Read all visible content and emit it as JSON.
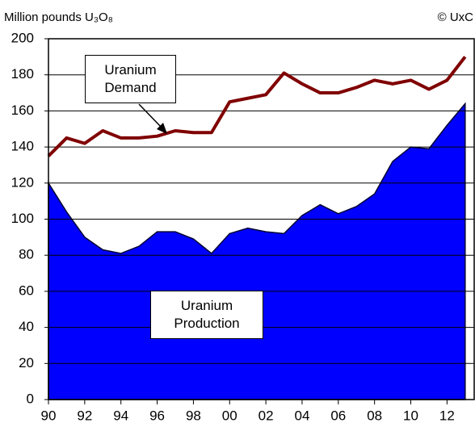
{
  "chart_data": {
    "type": "area_line",
    "title": "Million pounds U₃O₈",
    "source": "© UxC",
    "x": [
      1990,
      1991,
      1992,
      1993,
      1994,
      1995,
      1996,
      1997,
      1998,
      1999,
      2000,
      2001,
      2002,
      2003,
      2004,
      2005,
      2006,
      2007,
      2008,
      2009,
      2010,
      2011,
      2012,
      2013
    ],
    "series": [
      {
        "name": "Uranium Demand",
        "kind": "line",
        "color": "#800000",
        "values": [
          135,
          145,
          142,
          149,
          145,
          145,
          146,
          149,
          148,
          148,
          165,
          167,
          169,
          181,
          175,
          170,
          170,
          173,
          177,
          175,
          177,
          172,
          177,
          190
        ]
      },
      {
        "name": "Uranium Production",
        "kind": "area",
        "color": "#0000ff",
        "values": [
          120,
          104,
          90,
          83,
          81,
          85,
          93,
          93,
          89,
          81,
          92,
          95,
          93,
          92,
          102,
          108,
          103,
          107,
          114,
          132,
          140,
          139,
          152,
          164
        ]
      }
    ],
    "xlim": [
      1990,
      2013.5
    ],
    "xticks": [
      {
        "value": 1990,
        "label": "90"
      },
      {
        "value": 1992,
        "label": "92"
      },
      {
        "value": 1994,
        "label": "94"
      },
      {
        "value": 1996,
        "label": "96"
      },
      {
        "value": 1998,
        "label": "98"
      },
      {
        "value": 2000,
        "label": "00"
      },
      {
        "value": 2002,
        "label": "02"
      },
      {
        "value": 2004,
        "label": "04"
      },
      {
        "value": 2006,
        "label": "06"
      },
      {
        "value": 2008,
        "label": "08"
      },
      {
        "value": 2010,
        "label": "10"
      },
      {
        "value": 2012,
        "label": "12"
      }
    ],
    "ylim": [
      0,
      200
    ],
    "yticks": [
      0,
      20,
      40,
      60,
      80,
      100,
      120,
      140,
      160,
      180,
      200
    ],
    "grid": true
  }
}
